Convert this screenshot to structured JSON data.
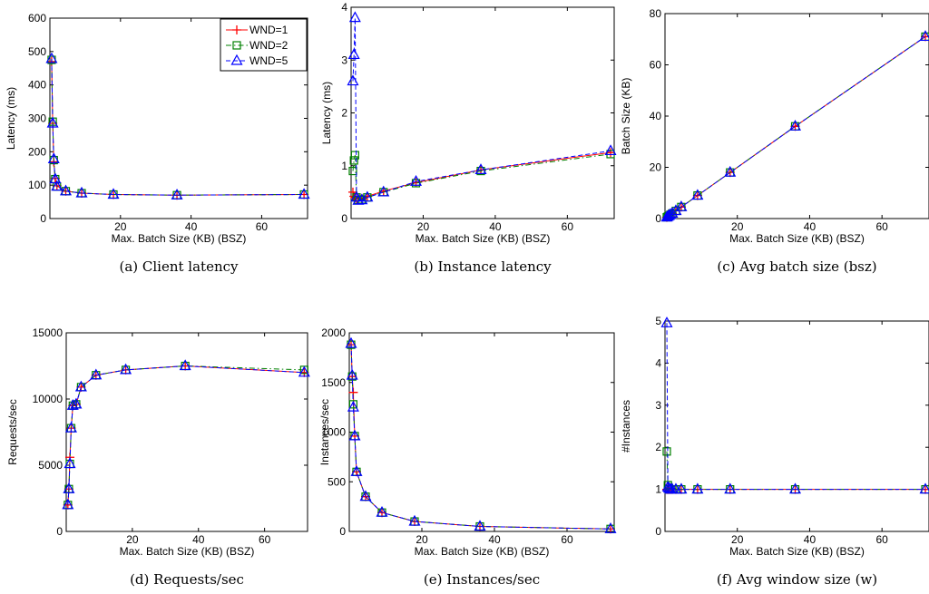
{
  "legend": {
    "entries": [
      {
        "name": "WND=1",
        "color": "#ff0000",
        "marker": "plus",
        "dash": "solid"
      },
      {
        "name": "WND=2",
        "color": "#008000",
        "marker": "square",
        "dash": "dashdot"
      },
      {
        "name": "WND=5",
        "color": "#0000ff",
        "marker": "triangle",
        "dash": "dashed"
      }
    ],
    "placement": "top-right of panel (a)"
  },
  "chart_data": [
    {
      "panel": "a",
      "type": "line",
      "caption": "(a) Client latency",
      "xlabel": "Max. Batch Size (KB) (BSZ)",
      "ylabel": "Latency (ms)",
      "xlim": [
        0,
        73
      ],
      "ylim": [
        0,
        600
      ],
      "xticks": [
        20,
        40,
        60
      ],
      "yticks": [
        0,
        100,
        200,
        300,
        400,
        500,
        600
      ],
      "grid": false,
      "series": [
        {
          "name": "WND=1",
          "x": [
            0.5,
            0.8,
            1.1,
            1.5,
            2,
            4.5,
            9,
            18,
            36,
            72
          ],
          "y": [
            470,
            285,
            170,
            120,
            98,
            82,
            76,
            72,
            70,
            72
          ]
        },
        {
          "name": "WND=2",
          "x": [
            0.5,
            0.8,
            1.1,
            1.5,
            2,
            4.5,
            9,
            18,
            36,
            72
          ],
          "y": [
            475,
            290,
            175,
            118,
            96,
            82,
            76,
            72,
            70,
            72
          ]
        },
        {
          "name": "WND=5",
          "x": [
            0.5,
            0.8,
            1.1,
            1.5,
            2,
            4.5,
            9,
            18,
            36,
            72
          ],
          "y": [
            478,
            285,
            178,
            118,
            96,
            82,
            76,
            72,
            70,
            72
          ]
        }
      ]
    },
    {
      "panel": "b",
      "type": "line",
      "caption": "(b) Instance latency",
      "xlabel": "Max. Batch Size (KB) (BSZ)",
      "ylabel": "Latency (ms)",
      "xlim": [
        0,
        73
      ],
      "ylim": [
        0,
        4
      ],
      "xticks": [
        20,
        40,
        60
      ],
      "yticks": [
        0,
        1,
        2,
        3,
        4
      ],
      "grid": false,
      "series": [
        {
          "name": "WND=1",
          "x": [
            0.5,
            0.8,
            1.1,
            1.5,
            2,
            3,
            4.5,
            9,
            18,
            36,
            72
          ],
          "y": [
            0.5,
            0.42,
            0.4,
            0.38,
            0.38,
            0.38,
            0.42,
            0.52,
            0.68,
            0.92,
            1.25
          ]
        },
        {
          "name": "WND=2",
          "x": [
            0.5,
            0.8,
            1.1,
            1.5,
            2,
            3,
            4.5,
            9,
            18,
            36,
            72
          ],
          "y": [
            0.9,
            1.1,
            1.2,
            0.4,
            0.35,
            0.36,
            0.4,
            0.5,
            0.67,
            0.9,
            1.22
          ]
        },
        {
          "name": "WND=5",
          "x": [
            0.5,
            0.8,
            1.1,
            1.5,
            2,
            3,
            4.5,
            9,
            18,
            36,
            72
          ],
          "y": [
            2.6,
            3.1,
            3.8,
            0.4,
            0.34,
            0.35,
            0.4,
            0.5,
            0.7,
            0.92,
            1.28
          ]
        }
      ]
    },
    {
      "panel": "c",
      "type": "line",
      "caption": "(c) Avg batch size (bsz)",
      "xlabel": "Max. Batch Size (KB) (BSZ)",
      "ylabel": "Batch Size (KB)",
      "xlim": [
        0,
        73
      ],
      "ylim": [
        0,
        80
      ],
      "xticks": [
        20,
        40,
        60
      ],
      "yticks": [
        0,
        20,
        40,
        60,
        80
      ],
      "grid": false,
      "series": [
        {
          "name": "WND=1",
          "x": [
            0.5,
            0.8,
            1.1,
            1.5,
            2,
            3,
            4.5,
            9,
            18,
            36,
            72
          ],
          "y": [
            0.5,
            0.8,
            1.1,
            1.5,
            2,
            3,
            4.5,
            9,
            18,
            36,
            71
          ]
        },
        {
          "name": "WND=2",
          "x": [
            0.5,
            0.8,
            1.1,
            1.5,
            2,
            3,
            4.5,
            9,
            18,
            36,
            72
          ],
          "y": [
            0.5,
            0.8,
            1.1,
            1.5,
            2,
            3,
            4.5,
            9,
            18,
            36,
            71
          ]
        },
        {
          "name": "WND=5",
          "x": [
            0.5,
            0.8,
            1.1,
            1.5,
            2,
            3,
            4.5,
            9,
            18,
            36,
            72
          ],
          "y": [
            0.5,
            0.8,
            1.1,
            1.5,
            2,
            3,
            4.5,
            9,
            18,
            36,
            71
          ]
        }
      ]
    },
    {
      "panel": "d",
      "type": "line",
      "caption": "(d) Requests/sec",
      "xlabel": "Max. Batch Size (KB) (BSZ)",
      "ylabel": "Requests/sec",
      "xlim": [
        0,
        73
      ],
      "ylim": [
        0,
        15000
      ],
      "xticks": [
        20,
        40,
        60
      ],
      "yticks": [
        0,
        5000,
        10000,
        15000
      ],
      "grid": false,
      "series": [
        {
          "name": "WND=1",
          "x": [
            0.5,
            0.8,
            1.1,
            1.5,
            2,
            3,
            4.5,
            9,
            18,
            36,
            72
          ],
          "y": [
            2000,
            3200,
            5600,
            7800,
            9500,
            9600,
            10900,
            11800,
            12200,
            12500,
            12000
          ]
        },
        {
          "name": "WND=2",
          "x": [
            0.5,
            0.8,
            1.1,
            1.5,
            2,
            3,
            4.5,
            9,
            18,
            36,
            72
          ],
          "y": [
            2000,
            3200,
            5100,
            7800,
            9500,
            9600,
            10900,
            11800,
            12200,
            12500,
            12200
          ]
        },
        {
          "name": "WND=5",
          "x": [
            0.5,
            0.8,
            1.1,
            1.5,
            2,
            3,
            4.5,
            9,
            18,
            36,
            72
          ],
          "y": [
            2000,
            3200,
            5100,
            7800,
            9500,
            9600,
            10900,
            11800,
            12200,
            12500,
            12000
          ]
        }
      ]
    },
    {
      "panel": "e",
      "type": "line",
      "caption": "(e) Instances/sec",
      "xlabel": "Max. Batch Size (KB) (BSZ)",
      "ylabel": "Instances/sec",
      "xlim": [
        0,
        73
      ],
      "ylim": [
        0,
        2000
      ],
      "xticks": [
        20,
        40,
        60
      ],
      "yticks": [
        0,
        500,
        1000,
        1500,
        2000
      ],
      "grid": false,
      "series": [
        {
          "name": "WND=1",
          "x": [
            0.5,
            0.8,
            1.1,
            1.5,
            2,
            4.5,
            9,
            18,
            36,
            72
          ],
          "y": [
            1880,
            1560,
            1400,
            960,
            600,
            350,
            190,
            100,
            50,
            25
          ]
        },
        {
          "name": "WND=2",
          "x": [
            0.5,
            0.8,
            1.1,
            1.5,
            2,
            4.5,
            9,
            18,
            36,
            72
          ],
          "y": [
            1880,
            1560,
            1280,
            960,
            600,
            350,
            190,
            100,
            50,
            25
          ]
        },
        {
          "name": "WND=5",
          "x": [
            0.5,
            0.8,
            1.1,
            1.5,
            2,
            4.5,
            9,
            18,
            36,
            72
          ],
          "y": [
            1890,
            1570,
            1250,
            960,
            600,
            350,
            190,
            100,
            50,
            25
          ]
        }
      ]
    },
    {
      "panel": "f",
      "type": "line",
      "caption": "(f) Avg window size (w)",
      "xlabel": "Max. Batch Size (KB) (BSZ)",
      "ylabel": "#Instances",
      "xlim": [
        0,
        73
      ],
      "ylim": [
        0,
        5
      ],
      "xticks": [
        20,
        40,
        60
      ],
      "yticks": [
        0,
        1,
        2,
        3,
        4,
        5
      ],
      "grid": false,
      "series": [
        {
          "name": "WND=1",
          "x": [
            0.5,
            0.8,
            1.1,
            1.5,
            2,
            3,
            4.5,
            9,
            18,
            36,
            72
          ],
          "y": [
            1,
            1,
            1,
            1,
            1,
            1,
            1,
            1,
            1,
            1,
            1
          ]
        },
        {
          "name": "WND=2",
          "x": [
            0.5,
            0.8,
            1.1,
            1.5,
            2,
            3,
            4.5,
            9,
            18,
            36,
            72
          ],
          "y": [
            1.9,
            1.1,
            1,
            1,
            1,
            1,
            1,
            1,
            1,
            1,
            1
          ]
        },
        {
          "name": "WND=5",
          "x": [
            0.5,
            0.8,
            1.1,
            1.5,
            2,
            3,
            4.5,
            9,
            18,
            36,
            72
          ],
          "y": [
            4.95,
            1.05,
            1.02,
            1,
            1,
            1,
            1,
            1,
            1,
            1,
            1
          ]
        }
      ]
    }
  ]
}
